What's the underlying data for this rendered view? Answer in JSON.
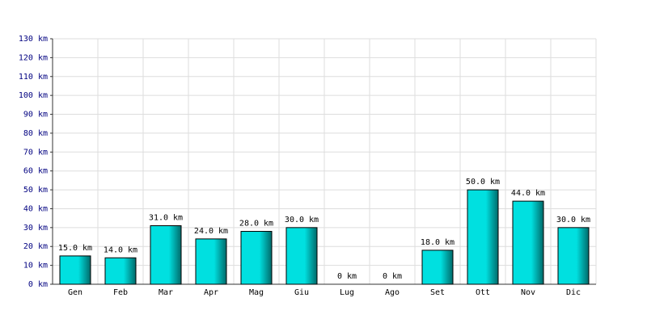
{
  "chart_data": {
    "type": "bar",
    "categories": [
      "Gen",
      "Feb",
      "Mar",
      "Apr",
      "Mag",
      "Giu",
      "Lug",
      "Ago",
      "Set",
      "Ott",
      "Nov",
      "Dic"
    ],
    "values": [
      15,
      14,
      31,
      24,
      28,
      30,
      0,
      0,
      18,
      50,
      44,
      30
    ],
    "value_labels": [
      "15.0 km",
      "14.0 km",
      "31.0 km",
      "24.0 km",
      "28.0 km",
      "30.0 km",
      "0 km",
      "0 km",
      "18.0 km",
      "50.0 km",
      "44.0 km",
      "30.0 km"
    ],
    "color": "#00e0e0",
    "ylim": [
      0,
      130
    ],
    "yticks": [
      {
        "value": 0,
        "label": "0 km"
      },
      {
        "value": 10,
        "label": "10 km"
      },
      {
        "value": 20,
        "label": "20 km"
      },
      {
        "value": 30,
        "label": "30 km"
      },
      {
        "value": 40,
        "label": "40 km"
      },
      {
        "value": 50,
        "label": "50 km"
      },
      {
        "value": 60,
        "label": "60 km"
      },
      {
        "value": 70,
        "label": "70 km"
      },
      {
        "value": 80,
        "label": "80 km"
      },
      {
        "value": 90,
        "label": "90 km"
      },
      {
        "value": 100,
        "label": "100 km"
      },
      {
        "value": 110,
        "label": "110 km"
      },
      {
        "value": 120,
        "label": "120 km"
      },
      {
        "value": 130,
        "label": "130 km"
      }
    ],
    "grid": true
  }
}
